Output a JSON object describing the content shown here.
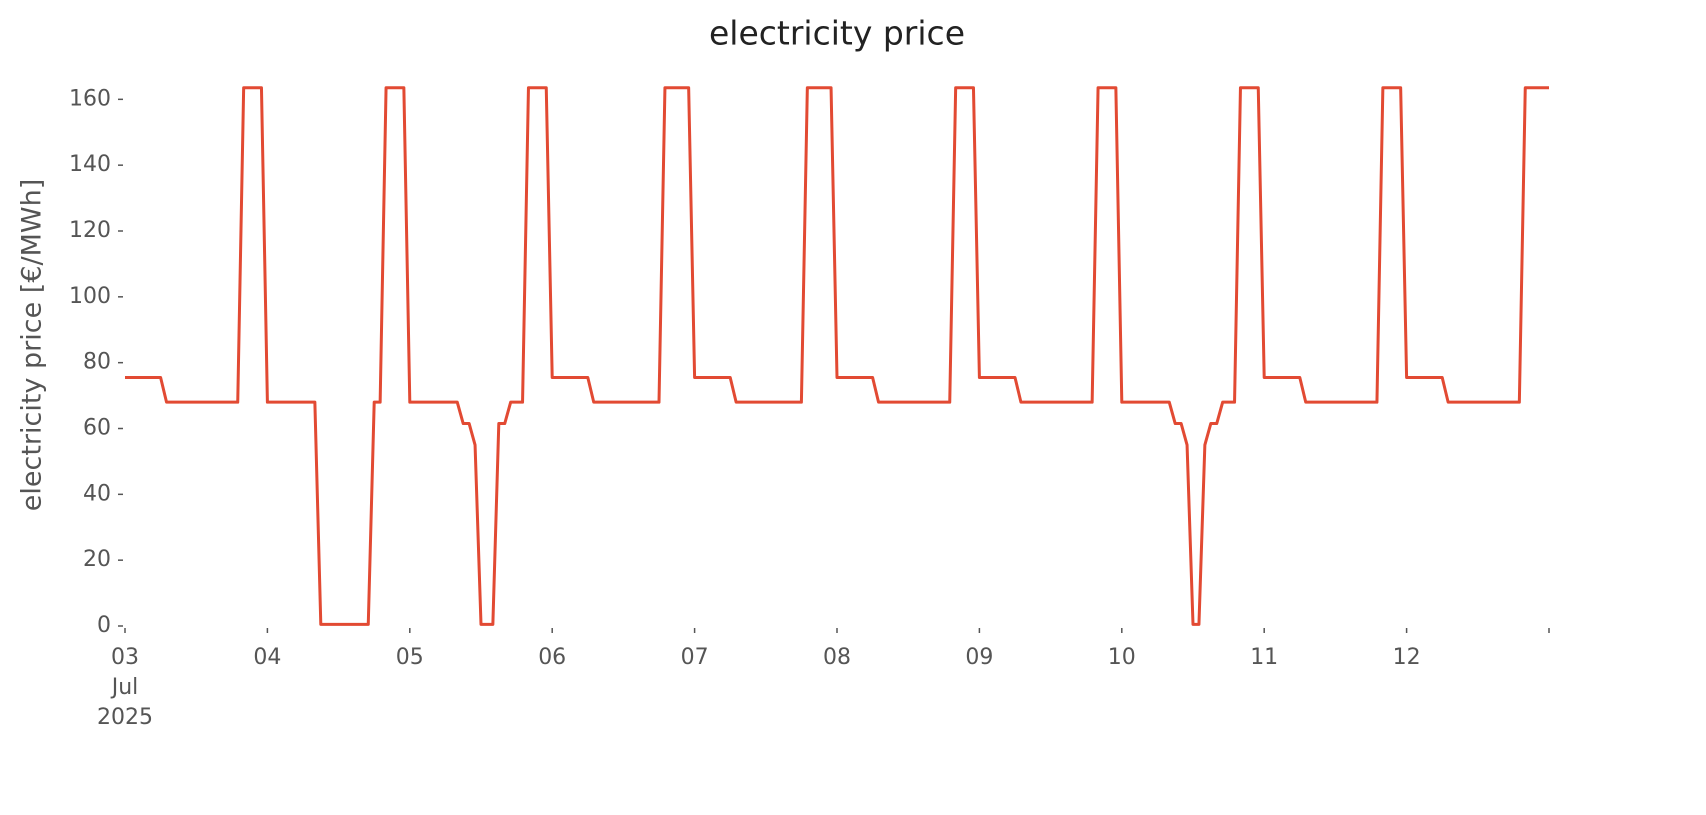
{
  "chart_data": {
    "type": "line",
    "title": "electricity price",
    "ylabel": "electricity price [€/MWh]",
    "x": [
      3,
      3.25,
      3.2917,
      3.7917,
      3.8333,
      3.9583,
      4,
      4.3333,
      4.375,
      4.7083,
      4.75,
      4.7917,
      4.8333,
      4.9583,
      5,
      5.3333,
      5.375,
      5.4167,
      5.4583,
      5.5,
      5.5833,
      5.625,
      5.6667,
      5.7083,
      5.7917,
      5.8333,
      5.9583,
      6,
      6.25,
      6.2917,
      6.75,
      6.7917,
      6.9583,
      7,
      7.25,
      7.2917,
      7.75,
      7.7917,
      7.9583,
      8,
      8.25,
      8.2917,
      8.7917,
      8.8333,
      8.9583,
      9,
      9.25,
      9.2917,
      9.7917,
      9.8333,
      9.9583,
      10,
      10.3333,
      10.375,
      10.4167,
      10.4583,
      10.5,
      10.5417,
      10.5833,
      10.625,
      10.6667,
      10.7083,
      10.7917,
      10.8333,
      10.9583,
      11,
      11.25,
      11.2917,
      11.7917,
      11.8333,
      11.9583,
      12,
      12.25,
      12.2917,
      12.7917,
      12.8333,
      13
    ],
    "values": [
      75.5,
      75.5,
      68,
      68,
      163.5,
      163.5,
      68,
      68,
      0.5,
      0.5,
      68,
      68,
      163.5,
      163.5,
      68,
      68,
      61.5,
      61.5,
      55,
      0.5,
      0.5,
      61.5,
      61.5,
      68,
      68,
      163.5,
      163.5,
      75.5,
      75.5,
      68,
      68,
      163.5,
      163.5,
      75.5,
      75.5,
      68,
      68,
      163.5,
      163.5,
      75.5,
      75.5,
      68,
      68,
      163.5,
      163.5,
      75.5,
      75.5,
      68,
      68,
      163.5,
      163.5,
      68,
      68,
      61.5,
      61.5,
      55,
      0.5,
      0.5,
      55,
      61.5,
      61.5,
      68,
      68,
      163.5,
      163.5,
      75.5,
      75.5,
      68,
      68,
      163.5,
      163.5,
      75.5,
      75.5,
      68,
      68,
      163.5,
      163.5
    ],
    "color": "#e24a33",
    "xlim": [
      3,
      13
    ],
    "xticks": [
      {
        "value": 3,
        "label": "03\nJul\n2025"
      },
      {
        "value": 4,
        "label": "04"
      },
      {
        "value": 5,
        "label": "05"
      },
      {
        "value": 6,
        "label": "06"
      },
      {
        "value": 7,
        "label": "07"
      },
      {
        "value": 8,
        "label": "08"
      },
      {
        "value": 9,
        "label": "09"
      },
      {
        "value": 10,
        "label": "10"
      },
      {
        "value": 11,
        "label": "11"
      },
      {
        "value": 12,
        "label": "12"
      },
      {
        "value": 13,
        "label": null
      }
    ],
    "ylim": [
      0,
      168
    ],
    "yticks": [
      0,
      20,
      40,
      60,
      80,
      100,
      120,
      140,
      160
    ],
    "grid": false
  }
}
